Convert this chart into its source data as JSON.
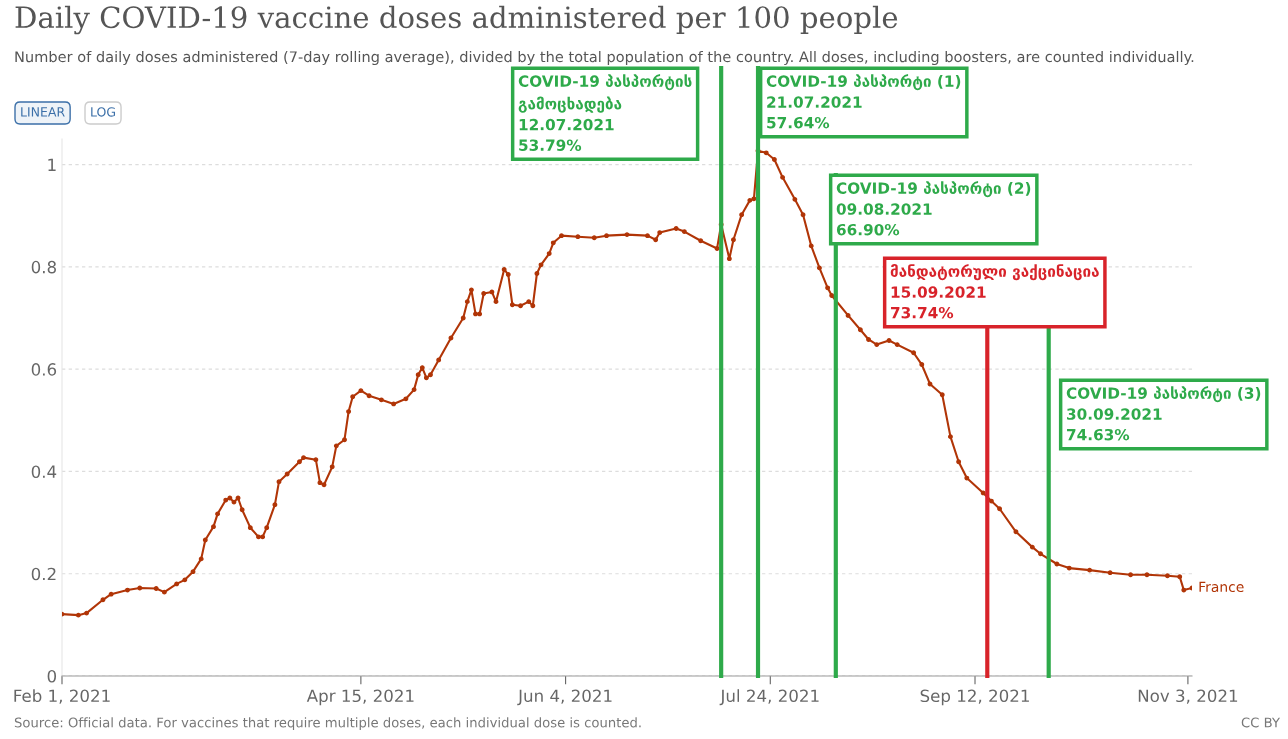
{
  "chart_data": {
    "type": "line",
    "title": "Daily COVID-19 vaccine doses administered per 100 people",
    "subtitle": "Number of daily doses administered (7-day rolling average), divided by the total population of the country. All doses, including boosters, are counted individually.",
    "x": [
      "2021-02-01",
      "2021-02-05",
      "2021-02-07",
      "2021-02-11",
      "2021-02-13",
      "2021-02-17",
      "2021-02-20",
      "2021-02-24",
      "2021-02-26",
      "2021-03-01",
      "2021-03-03",
      "2021-03-05",
      "2021-03-07",
      "2021-03-08",
      "2021-03-10",
      "2021-03-11",
      "2021-03-13",
      "2021-03-14",
      "2021-03-15",
      "2021-03-16",
      "2021-03-17",
      "2021-03-19",
      "2021-03-21",
      "2021-03-22",
      "2021-03-23",
      "2021-03-25",
      "2021-03-26",
      "2021-03-28",
      "2021-03-31",
      "2021-04-01",
      "2021-04-04",
      "2021-04-05",
      "2021-04-06",
      "2021-04-08",
      "2021-04-09",
      "2021-04-11",
      "2021-04-12",
      "2021-04-13",
      "2021-04-15",
      "2021-04-17",
      "2021-04-20",
      "2021-04-23",
      "2021-04-26",
      "2021-04-28",
      "2021-04-29",
      "2021-04-30",
      "2021-05-01",
      "2021-05-02",
      "2021-05-04",
      "2021-05-07",
      "2021-05-10",
      "2021-05-11",
      "2021-05-12",
      "2021-05-13",
      "2021-05-14",
      "2021-05-15",
      "2021-05-17",
      "2021-05-18",
      "2021-05-20",
      "2021-05-21",
      "2021-05-22",
      "2021-05-24",
      "2021-05-26",
      "2021-05-27",
      "2021-05-28",
      "2021-05-29",
      "2021-05-31",
      "2021-06-01",
      "2021-06-03",
      "2021-06-07",
      "2021-06-11",
      "2021-06-14",
      "2021-06-19",
      "2021-06-24",
      "2021-06-26",
      "2021-06-27",
      "2021-07-01",
      "2021-07-03",
      "2021-07-07",
      "2021-07-11",
      "2021-07-12",
      "2021-07-14",
      "2021-07-15",
      "2021-07-17",
      "2021-07-19",
      "2021-07-20",
      "2021-07-21",
      "2021-07-23",
      "2021-07-25",
      "2021-07-27",
      "2021-07-30",
      "2021-08-01",
      "2021-08-03",
      "2021-08-05",
      "2021-08-07",
      "2021-08-08",
      "2021-08-12",
      "2021-08-15",
      "2021-08-17",
      "2021-08-19",
      "2021-08-22",
      "2021-08-24",
      "2021-08-28",
      "2021-08-30",
      "2021-09-01",
      "2021-09-04",
      "2021-09-06",
      "2021-09-08",
      "2021-09-10",
      "2021-09-14",
      "2021-09-16",
      "2021-09-18",
      "2021-09-22",
      "2021-09-26",
      "2021-09-28",
      "2021-10-02",
      "2021-10-05",
      "2021-10-10",
      "2021-10-15",
      "2021-10-20",
      "2021-10-24",
      "2021-10-29",
      "2021-11-01",
      "2021-11-02",
      "2021-11-04"
    ],
    "series": [
      {
        "name": "France",
        "color": "#b13507",
        "values": [
          0.121,
          0.119,
          0.123,
          0.149,
          0.16,
          0.168,
          0.172,
          0.171,
          0.164,
          0.18,
          0.188,
          0.204,
          0.229,
          0.266,
          0.292,
          0.317,
          0.344,
          0.348,
          0.34,
          0.348,
          0.325,
          0.29,
          0.272,
          0.272,
          0.29,
          0.335,
          0.38,
          0.395,
          0.419,
          0.427,
          0.423,
          0.378,
          0.374,
          0.409,
          0.45,
          0.462,
          0.517,
          0.546,
          0.558,
          0.548,
          0.54,
          0.532,
          0.542,
          0.56,
          0.589,
          0.603,
          0.583,
          0.589,
          0.618,
          0.661,
          0.7,
          0.732,
          0.755,
          0.708,
          0.708,
          0.748,
          0.751,
          0.732,
          0.795,
          0.785,
          0.726,
          0.724,
          0.732,
          0.724,
          0.787,
          0.804,
          0.826,
          0.847,
          0.861,
          0.859,
          0.857,
          0.861,
          0.863,
          0.861,
          0.853,
          0.867,
          0.875,
          0.869,
          0.851,
          0.836,
          0.883,
          0.816,
          0.853,
          0.902,
          0.93,
          0.933,
          1.027,
          1.023,
          1.01,
          0.975,
          0.932,
          0.902,
          0.841,
          0.798,
          0.759,
          0.744,
          0.705,
          0.677,
          0.658,
          0.648,
          0.656,
          0.648,
          0.632,
          0.609,
          0.571,
          0.55,
          0.468,
          0.419,
          0.387,
          0.358,
          0.342,
          0.327,
          0.282,
          0.252,
          0.239,
          0.219,
          0.211,
          0.207,
          0.202,
          0.198,
          0.198,
          0.196,
          0.194,
          0.168,
          0.172
        ]
      }
    ],
    "xlim": [
      "2021-02-01",
      "2021-11-04"
    ],
    "xticks": [
      {
        "value": "2021-02-01",
        "label": "Feb 1, 2021"
      },
      {
        "value": "2021-04-15",
        "label": "Apr 15, 2021"
      },
      {
        "value": "2021-06-04",
        "label": "Jun 4, 2021"
      },
      {
        "value": "2021-07-24",
        "label": "Jul 24, 2021"
      },
      {
        "value": "2021-09-12",
        "label": "Sep 12, 2021"
      },
      {
        "value": "2021-11-03",
        "label": "Nov 3, 2021"
      }
    ],
    "ylim": [
      0,
      1.05
    ],
    "yticks": [
      0,
      0.2,
      0.4,
      0.6,
      0.8,
      1
    ],
    "grid": "y",
    "legend": false,
    "marker": "circle",
    "line_style": "solid",
    "ref_lines": [
      {
        "axis": "x",
        "value": "2021-07-12",
        "label": "COVID-19 პასპორტის\nგამოცხადება\n12.07.2021\n53.79%",
        "color": "#2eaa4a"
      },
      {
        "axis": "x",
        "value": "2021-07-21",
        "label": "COVID-19 პასპორტი (1)\n21.07.2021\n57.64%",
        "color": "#2eaa4a"
      },
      {
        "axis": "x",
        "value": "2021-08-09",
        "label": "COVID-19 პასპორტი (2)\n09.08.2021\n66.90%",
        "color": "#2eaa4a"
      },
      {
        "axis": "x",
        "value": "2021-09-15",
        "label": "მანდატორული ვაქცინაცია\n15.09.2021\n73.74%",
        "color": "#d8232a"
      },
      {
        "axis": "x",
        "value": "2021-09-30",
        "label": "COVID-19 პასპორტი (3)\n30.09.2021\n74.63%",
        "color": "#2eaa4a"
      }
    ],
    "annotations": [
      "LINEAR",
      "LOG",
      "Source: Official data. For vaccines that require multiple doses, each individual dose is counted.",
      "CC BY"
    ]
  }
}
